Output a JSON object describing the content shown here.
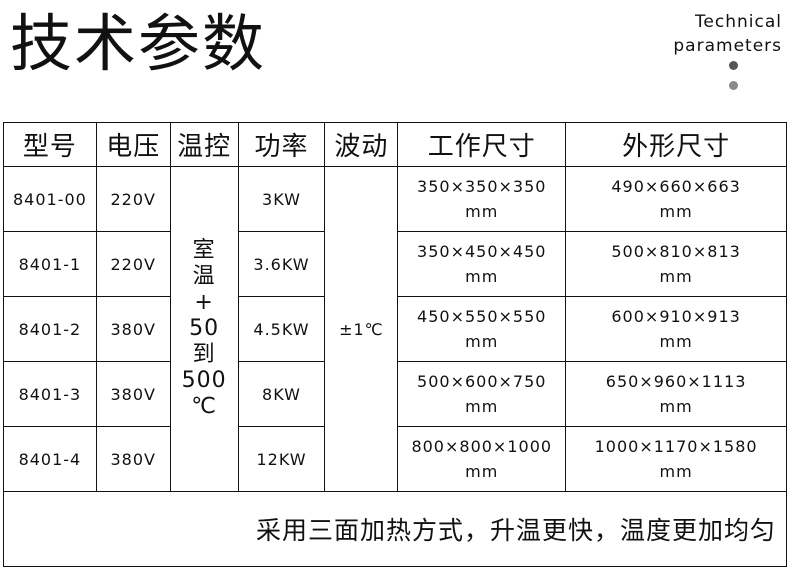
{
  "title": "技术参数",
  "subtitle": {
    "line1": "Technical",
    "line2": "parameters"
  },
  "colors": {
    "dot1": "#555555",
    "dot2": "#8a8a8a"
  },
  "headers": [
    "型号",
    "电压",
    "温控",
    "功率",
    "波动",
    "工作尺寸",
    "外形尺寸"
  ],
  "temp_control": [
    "室",
    "温",
    "+",
    "50",
    "到",
    "500",
    "℃"
  ],
  "fluctuation": "±1℃",
  "rows": [
    {
      "model": "8401-00",
      "voltage": "220V",
      "power": "3KW",
      "work": "350×350×350",
      "outer": "490×660×663"
    },
    {
      "model": "8401-1",
      "voltage": "220V",
      "power": "3.6KW",
      "work": "350×450×450",
      "outer": "500×810×813"
    },
    {
      "model": "8401-2",
      "voltage": "380V",
      "power": "4.5KW",
      "work": "450×550×550",
      "outer": "600×910×913"
    },
    {
      "model": "8401-3",
      "voltage": "380V",
      "power": "8KW",
      "work": "500×600×750",
      "outer": "650×960×1113"
    },
    {
      "model": "8401-4",
      "voltage": "380V",
      "power": "12KW",
      "work": "800×800×1000",
      "outer": "1000×1170×1580"
    }
  ],
  "unit": "mm",
  "footer": "采用三面加热方式，升温更快，温度更加均匀"
}
